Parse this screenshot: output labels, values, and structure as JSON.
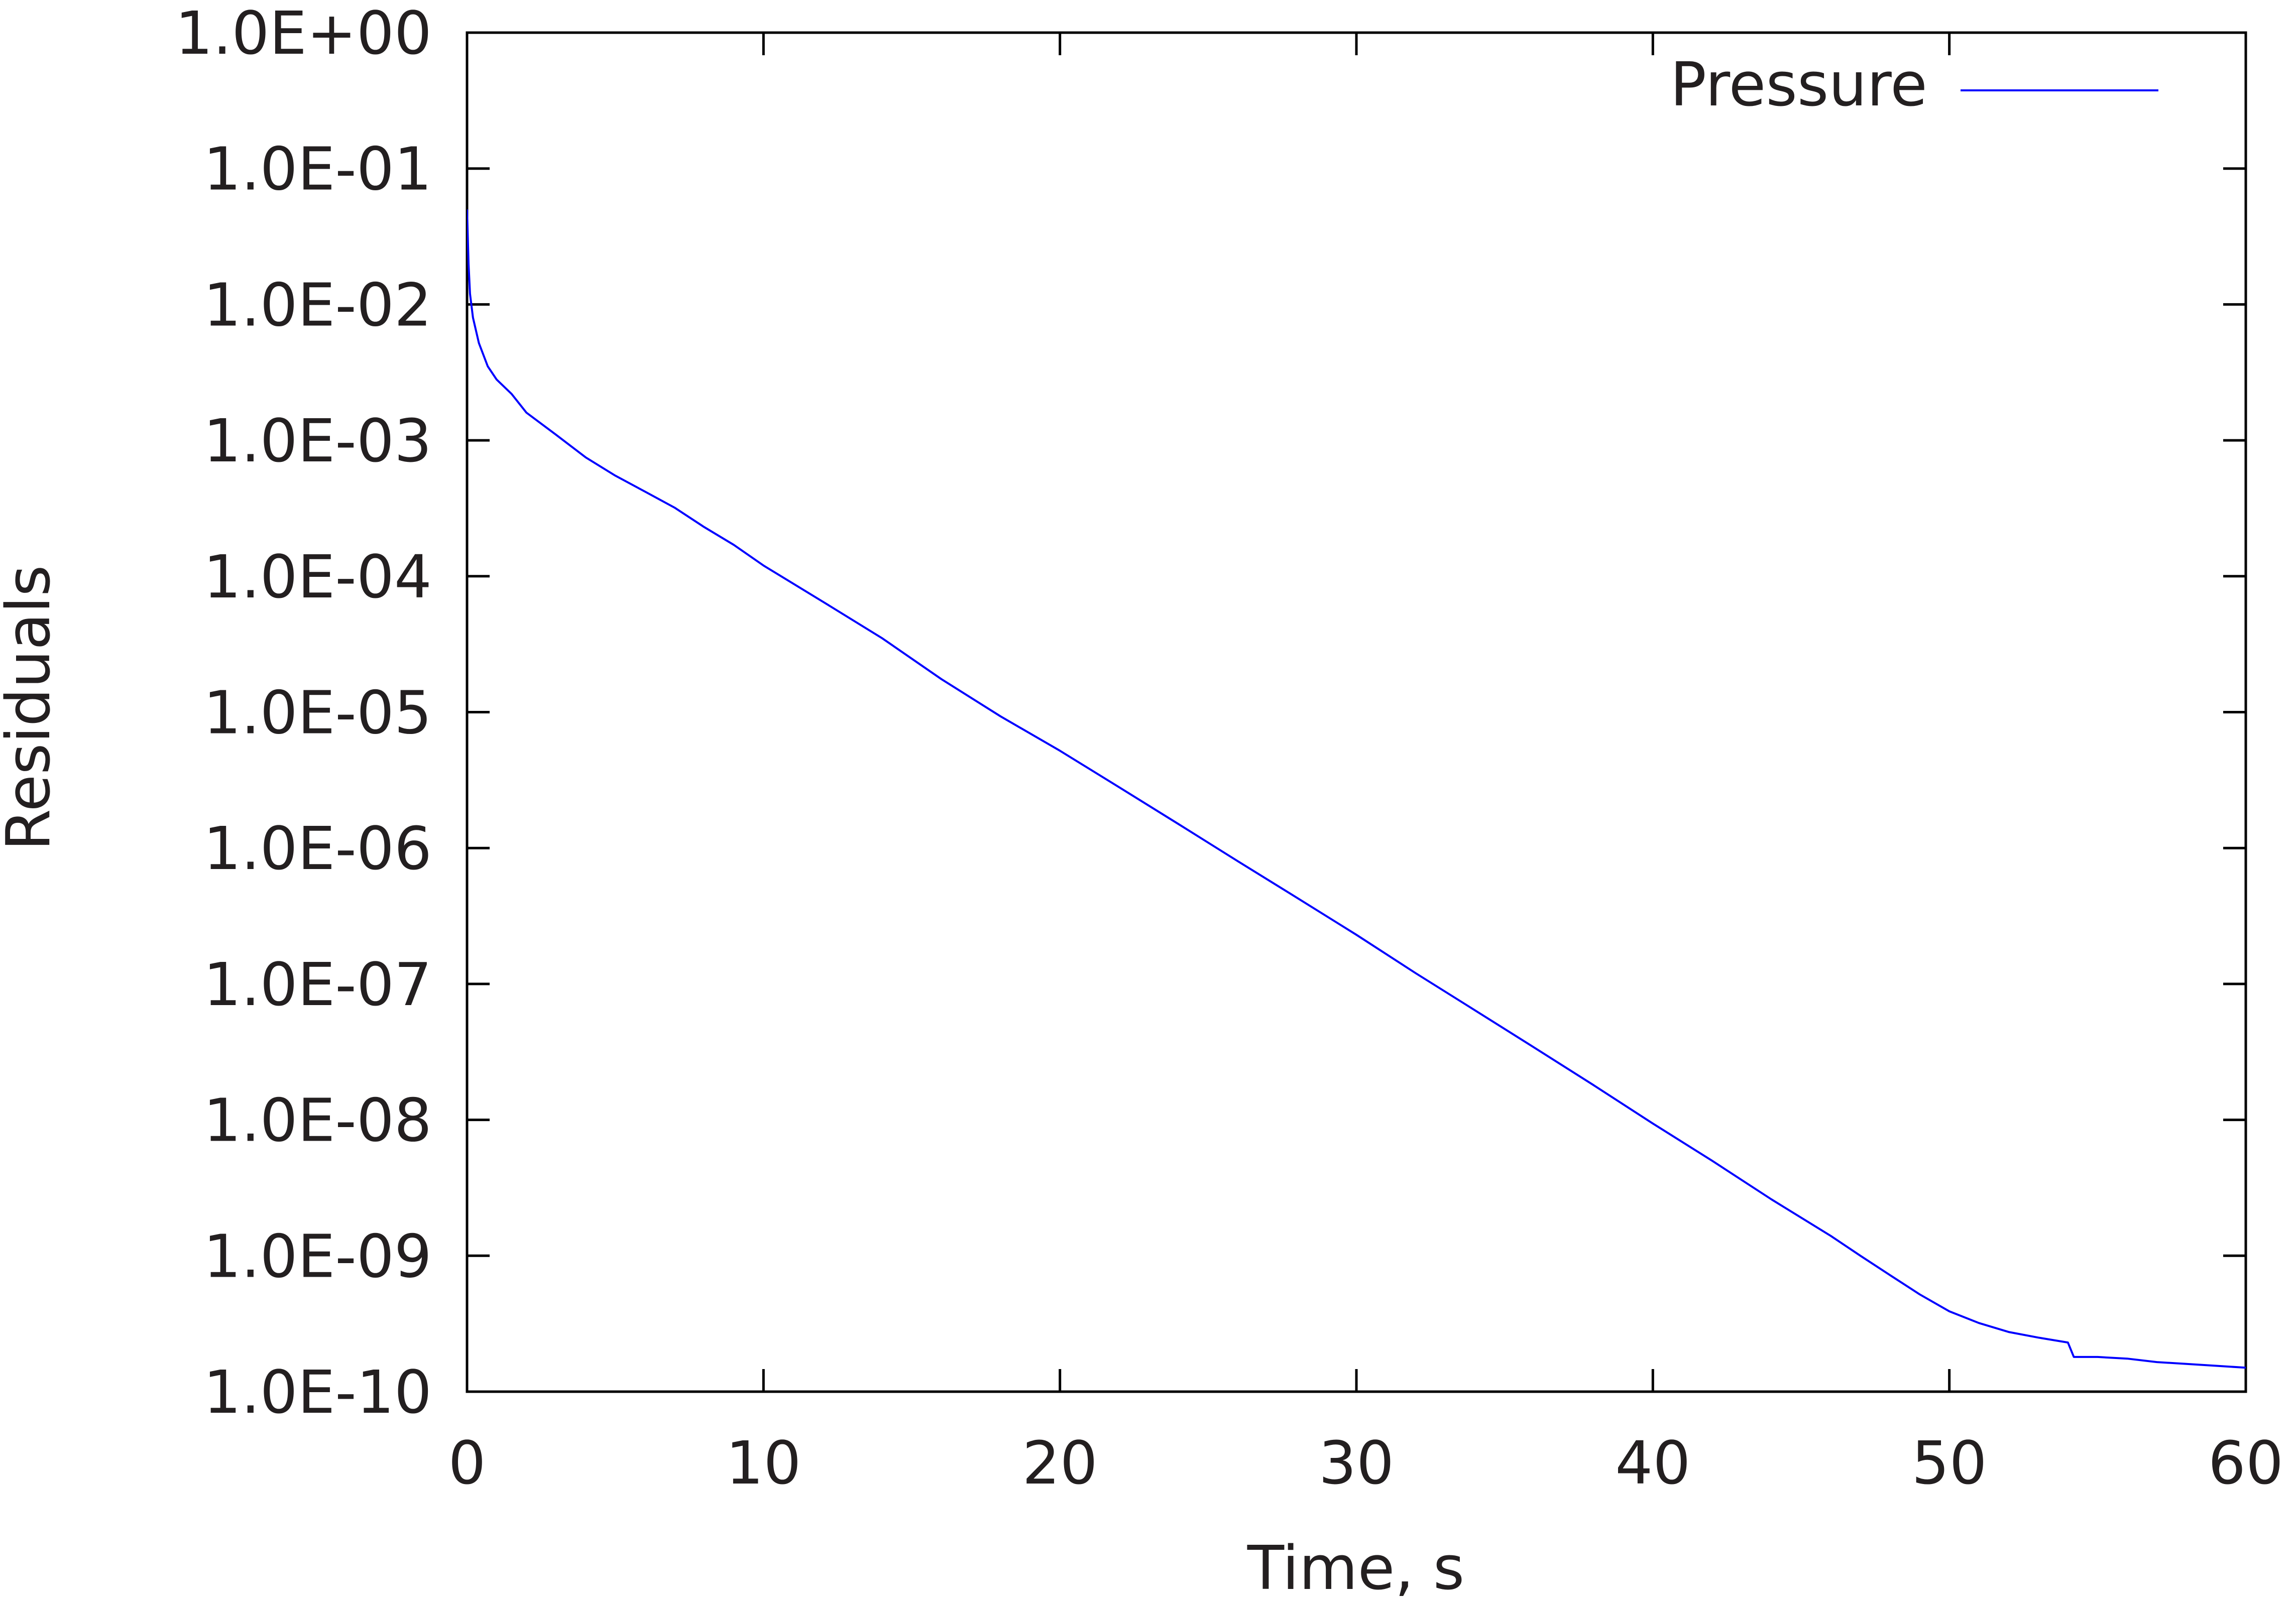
{
  "chart_data": {
    "type": "line",
    "xlabel": "Time, s",
    "ylabel": "Residuals",
    "xlim": [
      0,
      60
    ],
    "ylim": [
      1e-10,
      1
    ],
    "yscale": "log",
    "grid": false,
    "legend_position": "top-right",
    "x_ticks": [
      {
        "value": 0,
        "label": "0"
      },
      {
        "value": 10,
        "label": "10"
      },
      {
        "value": 20,
        "label": "20"
      },
      {
        "value": 30,
        "label": "30"
      },
      {
        "value": 40,
        "label": "40"
      },
      {
        "value": 50,
        "label": "50"
      },
      {
        "value": 60,
        "label": "60"
      }
    ],
    "y_ticks": [
      {
        "value": 1.0,
        "label": "1.0E+00"
      },
      {
        "value": 0.1,
        "label": "1.0E-01"
      },
      {
        "value": 0.01,
        "label": "1.0E-02"
      },
      {
        "value": 0.001,
        "label": "1.0E-03"
      },
      {
        "value": 0.0001,
        "label": "1.0E-04"
      },
      {
        "value": 1e-05,
        "label": "1.0E-05"
      },
      {
        "value": 1e-06,
        "label": "1.0E-06"
      },
      {
        "value": 1e-07,
        "label": "1.0E-07"
      },
      {
        "value": 1e-08,
        "label": "1.0E-08"
      },
      {
        "value": 1e-09,
        "label": "1.0E-09"
      },
      {
        "value": 1e-10,
        "label": "1.0E-10"
      }
    ],
    "series": [
      {
        "name": "Pressure",
        "color": "#0000ff",
        "x": [
          0,
          0.05,
          0.1,
          0.2,
          0.4,
          0.7,
          1,
          1.5,
          2,
          3,
          4,
          5,
          6,
          7,
          8,
          9,
          10,
          12,
          14,
          16,
          18,
          20,
          22,
          24,
          26,
          28,
          30,
          32,
          34,
          36,
          38,
          40,
          42,
          44,
          46,
          47,
          48,
          49,
          50,
          51,
          52,
          53,
          54,
          54.2,
          55,
          56,
          57,
          58,
          59,
          60
        ],
        "y": [
          0.05,
          0.02,
          0.012,
          0.008,
          0.0052,
          0.0035,
          0.0028,
          0.0022,
          0.0016,
          0.0011,
          0.00075,
          0.00055,
          0.00042,
          0.00032,
          0.00023,
          0.00017,
          0.00012,
          6.5e-05,
          3.5e-05,
          1.75e-05,
          9.3e-06,
          5.2e-06,
          2.8e-06,
          1.5e-06,
          8e-07,
          4.3e-07,
          2.3e-07,
          1.2e-07,
          6.4e-08,
          3.4e-08,
          1.8e-08,
          9.4e-09,
          5e-09,
          2.6e-09,
          1.4e-09,
          1e-09,
          7.2e-10,
          5.2e-10,
          3.9e-10,
          3.2e-10,
          2.75e-10,
          2.5e-10,
          2.3e-10,
          1.8e-10,
          1.8e-10,
          1.75e-10,
          1.65e-10,
          1.6e-10,
          1.55e-10,
          1.5e-10
        ]
      }
    ]
  }
}
